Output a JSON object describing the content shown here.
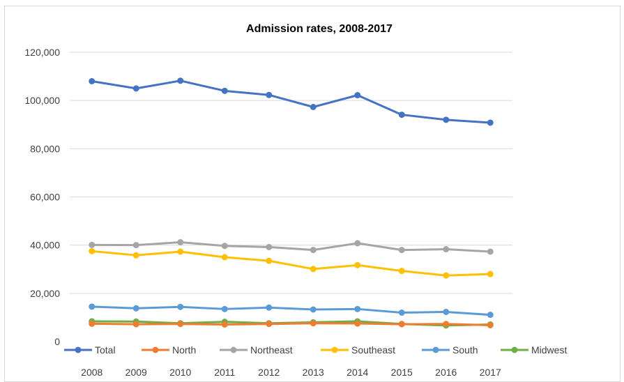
{
  "chart_data": {
    "type": "line",
    "title": "Admission  rates, 2008-2017",
    "xlabel": "",
    "ylabel": "",
    "categories": [
      "2008",
      "2009",
      "2010",
      "2011",
      "2012",
      "2013",
      "2014",
      "2015",
      "2016",
      "2017"
    ],
    "ylim": [
      0,
      120000
    ],
    "yticks": [
      "0",
      "20,000",
      "40,000",
      "60,000",
      "80,000",
      "100,000",
      "120,000"
    ],
    "grid": true,
    "legend_position": "bottom",
    "series": [
      {
        "name": "Total",
        "color": "#4472c4",
        "values": [
          108000,
          105000,
          108200,
          104000,
          102300,
          97300,
          102200,
          94100,
          92000,
          90800
        ]
      },
      {
        "name": "North",
        "color": "#ed7d31",
        "values": [
          7400,
          7200,
          7300,
          7100,
          7300,
          7600,
          7500,
          7200,
          7300,
          6800
        ]
      },
      {
        "name": "Northeast",
        "color": "#a5a5a5",
        "values": [
          40100,
          40000,
          41200,
          39700,
          39200,
          38000,
          40800,
          38000,
          38300,
          37300
        ]
      },
      {
        "name": "Southeast",
        "color": "#ffc000",
        "values": [
          37500,
          35800,
          37300,
          35000,
          33500,
          30100,
          31700,
          29300,
          27400,
          28000
        ]
      },
      {
        "name": "South",
        "color": "#5b9bd5",
        "values": [
          14500,
          13800,
          14400,
          13500,
          14100,
          13300,
          13500,
          12000,
          12300,
          11100
        ]
      },
      {
        "name": "Midwest",
        "color": "#70ad47",
        "values": [
          8400,
          8300,
          7600,
          8200,
          7600,
          8000,
          8400,
          7300,
          6700,
          7100
        ]
      }
    ]
  }
}
